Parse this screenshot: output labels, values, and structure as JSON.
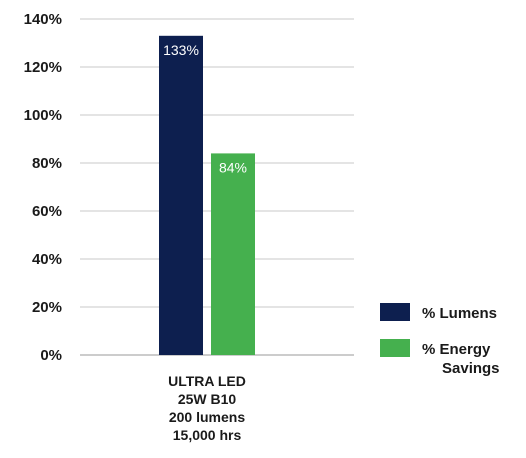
{
  "chart_data": {
    "type": "bar",
    "categories": [
      "ULTRA LED\n25W B10\n200 lumens\n15,000 hrs"
    ],
    "category_lines": [
      "ULTRA LED",
      "25W B10",
      "200 lumens",
      "15,000 hrs"
    ],
    "series": [
      {
        "name": "% Lumens",
        "values": [
          133
        ],
        "label": "133%",
        "color": "#0d1f4f"
      },
      {
        "name": "% Energy Savings",
        "legend_lines": [
          "% Energy",
          "Savings"
        ],
        "values": [
          84
        ],
        "label": "84%",
        "color": "#45b04e"
      }
    ],
    "ylim": [
      0,
      140
    ],
    "yticks": [
      0,
      20,
      40,
      60,
      80,
      100,
      120,
      140
    ],
    "ytick_labels": [
      "0%",
      "20%",
      "40%",
      "60%",
      "80%",
      "100%",
      "120%",
      "140%"
    ],
    "grid": true,
    "legend_position": "right",
    "title": "",
    "xlabel": "",
    "ylabel": ""
  }
}
